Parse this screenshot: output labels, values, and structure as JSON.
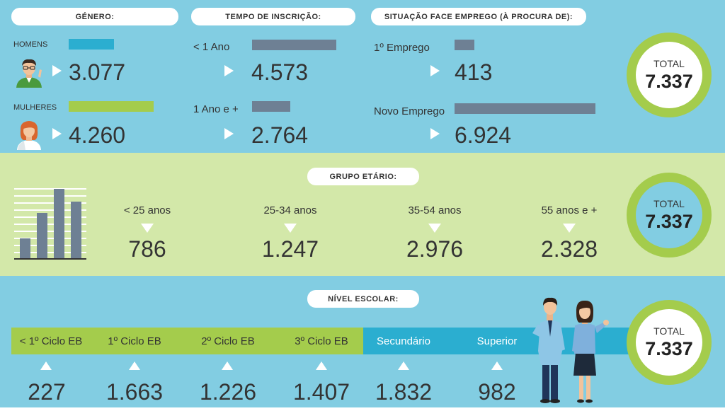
{
  "colors": {
    "blue_band": "#82cde2",
    "green_band": "#d3e8a9",
    "accent_green": "#a4cc4c",
    "accent_blue": "#2baed0",
    "bar_grey": "#6e8094"
  },
  "genero": {
    "title": "GÉNERO:",
    "homens_label": "HOMENS",
    "homens_value": "3.077",
    "homens_share": 0.419,
    "mulheres_label": "MULHERES",
    "mulheres_value": "4.260",
    "mulheres_share": 0.581
  },
  "tempo": {
    "title": "TEMPO DE INSCRIÇÃO:",
    "row1_label": "< 1 Ano",
    "row1_value": "4.573",
    "row2_label": "1 Ano e +",
    "row2_value": "2.764"
  },
  "situacao": {
    "title": "SITUAÇÃO FACE EMPREGO (À PROCURA DE):",
    "row1_label": "1º Emprego",
    "row1_value": "413",
    "row2_label": "Novo Emprego",
    "row2_value": "6.924"
  },
  "grupo": {
    "title": "GRUPO ETÁRIO:",
    "items": [
      {
        "label": "< 25 anos",
        "value": "786"
      },
      {
        "label": "25-34 anos",
        "value": "1.247"
      },
      {
        "label": "35-54 anos",
        "value": "2.976"
      },
      {
        "label": "55 anos e +",
        "value": "2.328"
      }
    ]
  },
  "nivel": {
    "title": "NÍVEL ESCOLAR:",
    "items": [
      {
        "label": "< 1º Ciclo EB",
        "value": "227"
      },
      {
        "label": "1º Ciclo EB",
        "value": "1.663"
      },
      {
        "label": "2º Ciclo EB",
        "value": "1.226"
      },
      {
        "label": "3º Ciclo EB",
        "value": "1.407"
      },
      {
        "label": "Secundário",
        "value": "1.832"
      },
      {
        "label": "Superior",
        "value": "982"
      }
    ]
  },
  "total": {
    "label": "TOTAL",
    "value": "7.337"
  },
  "icons": [
    "man-avatar-icon",
    "woman-avatar-icon",
    "bar-chart-icon",
    "business-couple-icon"
  ]
}
